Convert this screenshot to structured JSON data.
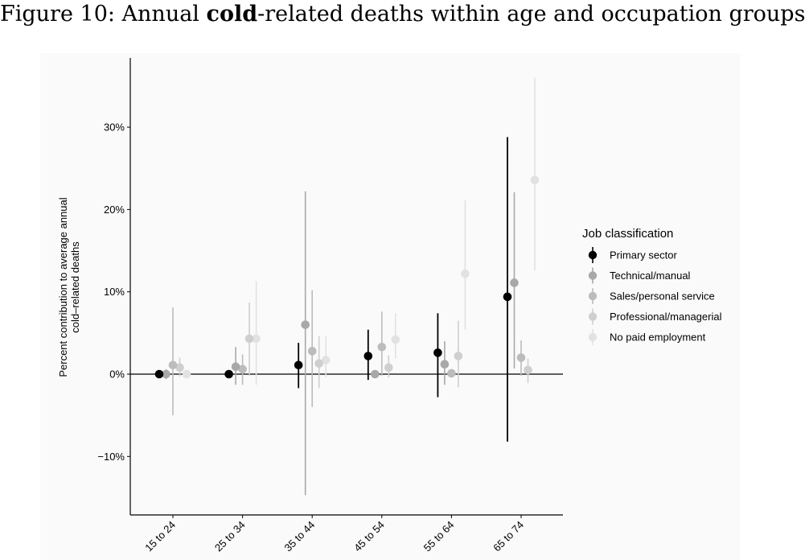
{
  "figure": {
    "title_prefix": "Figure 10: Annual ",
    "title_bold": "cold",
    "title_suffix": "-related deaths within age and occupation groups"
  },
  "chart_data": {
    "type": "scatter",
    "subtype": "point-with-error-bars",
    "title": "Figure 10: Annual cold-related deaths within age and occupation groups",
    "xlabel": "",
    "ylabel_lines": [
      "Percent contribution to average annual",
      "cold–related deaths"
    ],
    "categories": [
      "15 to 24",
      "25 to 34",
      "35 to 44",
      "45 to 54",
      "55 to 64",
      "65 to 74"
    ],
    "ylim": [
      -17,
      38
    ],
    "yticks": [
      -10,
      0,
      10,
      20,
      30
    ],
    "ytick_labels": [
      "−10%",
      "0%",
      "10%",
      "20%",
      "30%"
    ],
    "reference_line": 0,
    "grid": false,
    "legend_title": "Job classification",
    "legend_position": "right",
    "series": [
      {
        "name": "Primary sector",
        "color": "#000000",
        "values": [
          0.0,
          0.0,
          1.1,
          2.2,
          2.6,
          9.4
        ],
        "lower": [
          0.0,
          0.0,
          -1.7,
          -0.7,
          -2.8,
          -8.2
        ],
        "upper": [
          0.0,
          0.0,
          3.8,
          5.4,
          7.4,
          28.8
        ]
      },
      {
        "name": "Technical/manual",
        "color": "#a8a8a8",
        "values": [
          0.0,
          0.9,
          6.0,
          0.0,
          1.2,
          11.1
        ],
        "lower": [
          -0.6,
          -1.3,
          -14.7,
          -0.3,
          -1.3,
          0.7
        ],
        "upper": [
          0.6,
          3.3,
          22.2,
          0.3,
          4.0,
          22.1
        ]
      },
      {
        "name": "Sales/personal service",
        "color": "#bcbcbc",
        "values": [
          1.1,
          0.6,
          2.8,
          3.3,
          0.1,
          2.0
        ],
        "lower": [
          -5.0,
          -1.3,
          -4.0,
          -0.2,
          -0.3,
          -0.2
        ],
        "upper": [
          8.1,
          2.4,
          10.2,
          7.6,
          0.5,
          4.1
        ]
      },
      {
        "name": "Professional/managerial",
        "color": "#cfcfcf",
        "values": [
          0.8,
          4.3,
          1.3,
          0.8,
          2.2,
          0.5
        ],
        "lower": [
          -0.3,
          -0.2,
          -1.7,
          -0.4,
          -1.6,
          -1.1
        ],
        "upper": [
          2.0,
          8.7,
          4.6,
          2.3,
          6.5,
          1.9
        ]
      },
      {
        "name": "No paid employment",
        "color": "#e2e2e2",
        "values": [
          0.0,
          4.3,
          1.7,
          4.2,
          12.2,
          23.6
        ],
        "lower": [
          0.0,
          -1.3,
          -0.4,
          1.9,
          5.4,
          12.6
        ],
        "upper": [
          0.0,
          11.3,
          4.6,
          7.4,
          21.1,
          36.0
        ]
      }
    ]
  }
}
